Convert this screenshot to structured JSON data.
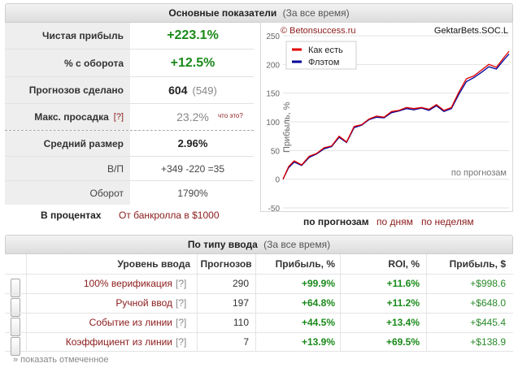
{
  "main_panel": {
    "title": "Основные показатели",
    "subtitle": "(За все время)"
  },
  "stats": {
    "net_profit": {
      "label": "Чистая прибыль",
      "value": "+223.1%"
    },
    "turnover_pct": {
      "label": "% с оборота",
      "value": "+12.5%"
    },
    "forecasts": {
      "label": "Прогнозов сделано",
      "value": "604",
      "extra": "(549)"
    },
    "max_drawdown": {
      "label": "Макс. просадка",
      "help": "[?]",
      "value": "23.2%",
      "what": "что это?"
    },
    "avg_size": {
      "label": "Средний размер",
      "value": "2.96%"
    },
    "wl": {
      "label": "В/П",
      "value": "+349 -220 =35"
    },
    "turnover": {
      "label": "Оборот",
      "value": "1790%"
    },
    "in_percent": "В процентах",
    "from_bankroll": "От банкролла в $1000"
  },
  "chart": {
    "watermark_left": "© Betonsuccess.ru",
    "watermark_right": "GektarBets.SOC.L",
    "ylabel": "Прибыль, %",
    "xlabel_inside": "по прогнозам",
    "legend_raw": "Как есть",
    "legend_flat": "Флэтом",
    "view_forecasts": "по прогнозам",
    "view_days": "по дням",
    "view_weeks": "по неделям"
  },
  "chart_data": {
    "type": "line",
    "title": "",
    "xlabel": "по прогнозам",
    "ylabel": "Прибыль, %",
    "ylim": [
      -50,
      250
    ],
    "yticks": [
      -50,
      0,
      50,
      100,
      150,
      200,
      250
    ],
    "legend_position": "top-left",
    "grid": true,
    "series": [
      {
        "name": "Как есть",
        "color": "#e00000",
        "x": [
          0,
          15,
          30,
          50,
          70,
          90,
          110,
          130,
          150,
          170,
          190,
          210,
          230,
          250,
          270,
          290,
          310,
          330,
          350,
          370,
          390,
          410,
          430,
          450,
          470,
          490,
          510,
          530,
          550,
          570,
          590,
          604
        ],
        "y": [
          0,
          22,
          32,
          25,
          40,
          45,
          55,
          58,
          75,
          65,
          92,
          95,
          105,
          110,
          108,
          118,
          120,
          125,
          123,
          125,
          122,
          130,
          120,
          125,
          152,
          175,
          180,
          190,
          200,
          195,
          212,
          223
        ]
      },
      {
        "name": "Флэтом",
        "color": "#000099",
        "x": [
          0,
          15,
          30,
          50,
          70,
          90,
          110,
          130,
          150,
          170,
          190,
          210,
          230,
          250,
          270,
          290,
          310,
          330,
          350,
          370,
          390,
          410,
          430,
          450,
          470,
          490,
          510,
          530,
          550,
          570,
          590,
          604
        ],
        "y": [
          0,
          20,
          30,
          24,
          38,
          44,
          53,
          57,
          73,
          64,
          90,
          94,
          104,
          108,
          107,
          116,
          119,
          123,
          121,
          124,
          120,
          128,
          118,
          123,
          148,
          170,
          177,
          186,
          196,
          192,
          208,
          218
        ]
      }
    ]
  },
  "type_panel": {
    "title": "По типу ввода",
    "subtitle": "(За все время)"
  },
  "table": {
    "headers": [
      "Уровень ввода",
      "Прогнозов",
      "Прибыль, %",
      "ROI, %",
      "Прибыль, $"
    ],
    "rows": [
      {
        "level": "100% верификация",
        "help": "[?]",
        "count": "290",
        "profit_pct": "+99.9%",
        "roi": "+11.6%",
        "profit_usd": "+$998.6"
      },
      {
        "level": "Ручной ввод",
        "help": "[?]",
        "count": "197",
        "profit_pct": "+64.8%",
        "roi": "+11.2%",
        "profit_usd": "+$648.0"
      },
      {
        "level": "Событие из линии",
        "help": "[?]",
        "count": "110",
        "profit_pct": "+44.5%",
        "roi": "+13.4%",
        "profit_usd": "+$445.4"
      },
      {
        "level": "Коэффициент из линии",
        "help": "[?]",
        "count": "7",
        "profit_pct": "+13.9%",
        "roi": "+69.5%",
        "profit_usd": "+$138.9"
      }
    ],
    "show_marked": "» показать отмеченное"
  }
}
